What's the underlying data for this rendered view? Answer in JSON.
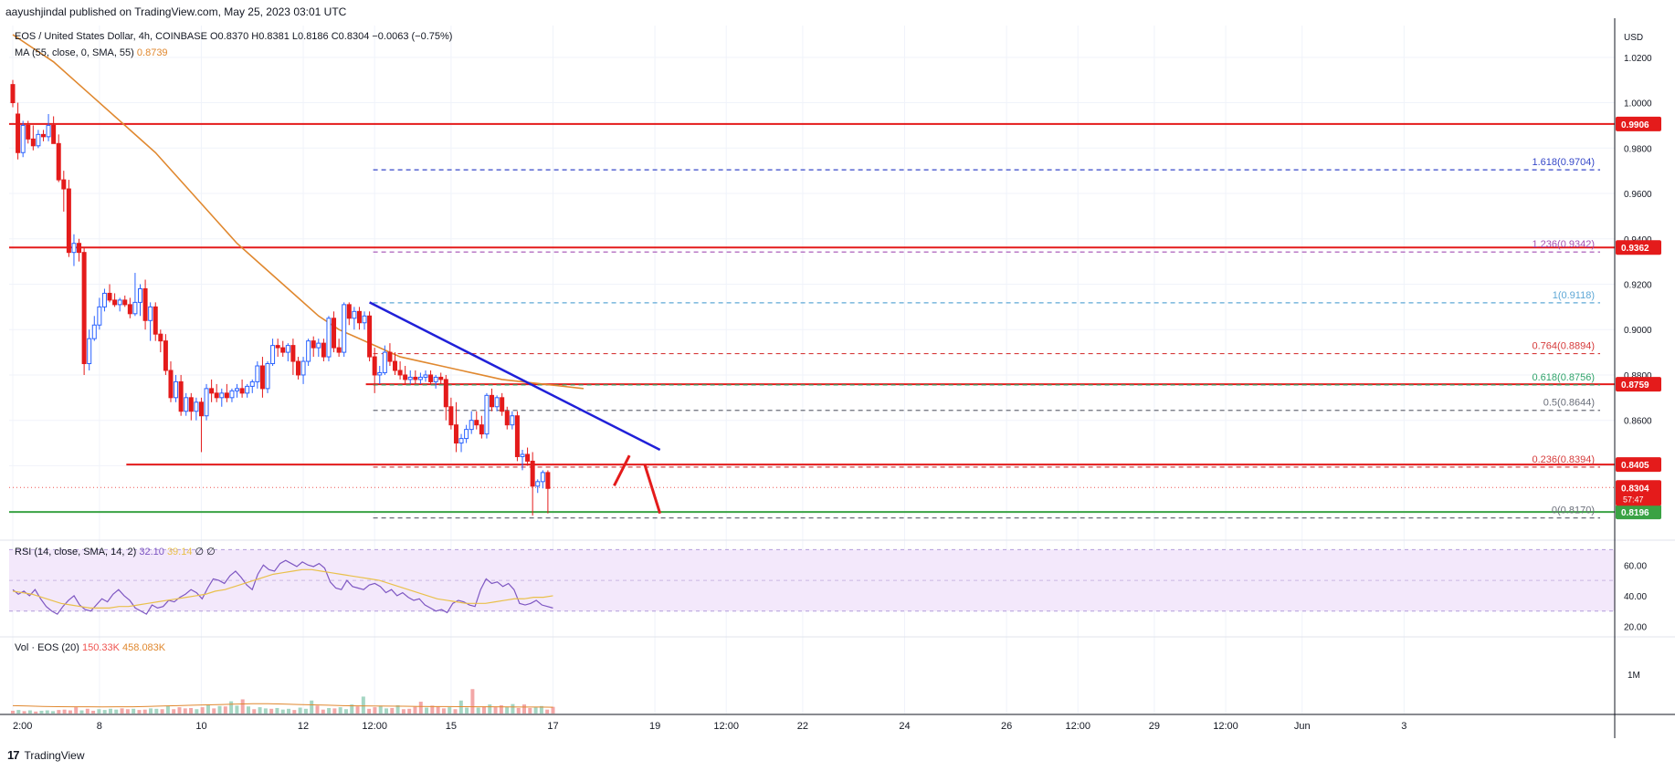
{
  "header": {
    "published": "aayushjindal published on TradingView.com, May 25, 2023 03:01 UTC"
  },
  "legend": {
    "symbol": "EOS / United States Dollar, 4h, COINBASE",
    "ohlc": "O0.8370 H0.8381 L0.8186 C0.8304 −0.0063 (−0.75%)",
    "ma_label": "MA (55, close, 0, SMA, 55)",
    "ma_value": "0.8739",
    "rsi_label": "RSI (14, close, SMA, 14, 2)",
    "rsi_value": "32.10",
    "rsi_ma_value": "39.14",
    "rsi_extra": "∅ ∅",
    "vol_label": "Vol · EOS (20)",
    "vol_value": "150.33K",
    "vol_ma_value": "458.083K"
  },
  "footer": {
    "brand": "TradingView",
    "logo": "17"
  },
  "chart_data": {
    "type": "candlestick",
    "currency_label": "USD",
    "ylim": [
      0.808,
      1.034
    ],
    "price_ticks": [
      "1.0200",
      "1.0000",
      "0.9800",
      "0.9600",
      "0.9400",
      "0.9200",
      "0.9000",
      "0.8800",
      "0.8600",
      "0.8400"
    ],
    "price_tick_values": [
      1.02,
      1.0,
      0.98,
      0.96,
      0.94,
      0.92,
      0.9,
      0.88,
      0.86,
      0.84
    ],
    "rsi_ticks": [
      "60.00",
      "40.00",
      "20.00"
    ],
    "rsi_tick_values": [
      60,
      40,
      20
    ],
    "rsi_band": [
      30,
      70
    ],
    "vol_ticks": [
      "1M"
    ],
    "x_ticks": [
      "2:00",
      "8",
      "10",
      "12",
      "12:00",
      "15",
      "17",
      "19",
      "12:00",
      "22",
      "24",
      "26",
      "12:00",
      "29",
      "12:00",
      "Jun",
      "3"
    ],
    "x_tick_bars": [
      0,
      17,
      37,
      57,
      71,
      86,
      106,
      126,
      140,
      155,
      175,
      195,
      209,
      224,
      238,
      253,
      273
    ],
    "total_bars": 293,
    "candle_start_bar": 0,
    "candles_ohlc": [
      [
        1.008,
        1.01,
        0.998,
        1.0
      ],
      [
        0.995,
        1.0,
        0.975,
        0.978
      ],
      [
        0.978,
        0.992,
        0.976,
        0.99
      ],
      [
        0.99,
        0.992,
        0.982,
        0.984
      ],
      [
        0.984,
        0.99,
        0.979,
        0.981
      ],
      [
        0.981,
        0.988,
        0.98,
        0.986
      ],
      [
        0.986,
        0.988,
        0.983,
        0.985
      ],
      [
        0.985,
        0.995,
        0.983,
        0.99
      ],
      [
        0.99,
        0.994,
        0.982,
        0.982
      ],
      [
        0.982,
        0.986,
        0.965,
        0.966
      ],
      [
        0.966,
        0.97,
        0.952,
        0.962
      ],
      [
        0.962,
        0.966,
        0.932,
        0.934
      ],
      [
        0.934,
        0.942,
        0.928,
        0.938
      ],
      [
        0.938,
        0.94,
        0.93,
        0.934
      ],
      [
        0.934,
        0.936,
        0.88,
        0.885
      ],
      [
        0.885,
        0.9,
        0.882,
        0.896
      ],
      [
        0.896,
        0.906,
        0.895,
        0.902
      ],
      [
        0.902,
        0.914,
        0.9,
        0.91
      ],
      [
        0.91,
        0.918,
        0.908,
        0.916
      ],
      [
        0.916,
        0.92,
        0.912,
        0.913
      ],
      [
        0.913,
        0.916,
        0.91,
        0.911
      ],
      [
        0.911,
        0.914,
        0.908,
        0.913
      ],
      [
        0.913,
        0.915,
        0.91,
        0.911
      ],
      [
        0.911,
        0.914,
        0.905,
        0.907
      ],
      [
        0.907,
        0.925,
        0.906,
        0.912
      ],
      [
        0.912,
        0.92,
        0.906,
        0.918
      ],
      [
        0.918,
        0.922,
        0.9,
        0.904
      ],
      [
        0.904,
        0.912,
        0.895,
        0.91
      ],
      [
        0.91,
        0.912,
        0.895,
        0.898
      ],
      [
        0.898,
        0.9,
        0.89,
        0.895
      ],
      [
        0.895,
        0.898,
        0.88,
        0.882
      ],
      [
        0.882,
        0.886,
        0.868,
        0.87
      ],
      [
        0.87,
        0.88,
        0.868,
        0.877
      ],
      [
        0.877,
        0.88,
        0.862,
        0.864
      ],
      [
        0.864,
        0.872,
        0.862,
        0.87
      ],
      [
        0.87,
        0.872,
        0.86,
        0.864
      ],
      [
        0.864,
        0.87,
        0.86,
        0.868
      ],
      [
        0.868,
        0.87,
        0.846,
        0.862
      ],
      [
        0.862,
        0.876,
        0.86,
        0.874
      ],
      [
        0.874,
        0.878,
        0.868,
        0.872
      ],
      [
        0.872,
        0.876,
        0.868,
        0.87
      ],
      [
        0.87,
        0.874,
        0.866,
        0.872
      ],
      [
        0.872,
        0.876,
        0.868,
        0.87
      ],
      [
        0.87,
        0.874,
        0.868,
        0.873
      ],
      [
        0.873,
        0.876,
        0.87,
        0.874
      ],
      [
        0.874,
        0.878,
        0.87,
        0.872
      ],
      [
        0.872,
        0.876,
        0.87,
        0.875
      ],
      [
        0.875,
        0.878,
        0.872,
        0.877
      ],
      [
        0.877,
        0.886,
        0.874,
        0.884
      ],
      [
        0.884,
        0.888,
        0.87,
        0.874
      ],
      [
        0.874,
        0.886,
        0.872,
        0.885
      ],
      [
        0.885,
        0.896,
        0.884,
        0.893
      ],
      [
        0.893,
        0.896,
        0.888,
        0.892
      ],
      [
        0.892,
        0.895,
        0.888,
        0.89
      ],
      [
        0.89,
        0.894,
        0.886,
        0.893
      ],
      [
        0.893,
        0.896,
        0.88,
        0.886
      ],
      [
        0.886,
        0.888,
        0.878,
        0.88
      ],
      [
        0.88,
        0.888,
        0.876,
        0.886
      ],
      [
        0.886,
        0.896,
        0.884,
        0.895
      ],
      [
        0.895,
        0.897,
        0.888,
        0.892
      ],
      [
        0.892,
        0.896,
        0.888,
        0.894
      ],
      [
        0.894,
        0.896,
        0.886,
        0.888
      ],
      [
        0.888,
        0.906,
        0.886,
        0.905
      ],
      [
        0.905,
        0.908,
        0.89,
        0.892
      ],
      [
        0.892,
        0.896,
        0.888,
        0.89
      ],
      [
        0.89,
        0.912,
        0.888,
        0.911
      ],
      [
        0.911,
        0.912,
        0.902,
        0.905
      ],
      [
        0.905,
        0.91,
        0.9,
        0.908
      ],
      [
        0.908,
        0.91,
        0.9,
        0.903
      ],
      [
        0.903,
        0.908,
        0.9,
        0.906
      ],
      [
        0.906,
        0.908,
        0.886,
        0.888
      ],
      [
        0.888,
        0.892,
        0.872,
        0.88
      ],
      [
        0.88,
        0.884,
        0.876,
        0.881
      ],
      [
        0.881,
        0.893,
        0.88,
        0.89
      ],
      [
        0.89,
        0.894,
        0.884,
        0.886
      ],
      [
        0.886,
        0.89,
        0.88,
        0.882
      ],
      [
        0.882,
        0.886,
        0.878,
        0.88
      ],
      [
        0.88,
        0.884,
        0.876,
        0.878
      ],
      [
        0.878,
        0.882,
        0.876,
        0.879
      ],
      [
        0.879,
        0.882,
        0.876,
        0.878
      ],
      [
        0.878,
        0.881,
        0.876,
        0.879
      ],
      [
        0.879,
        0.882,
        0.877,
        0.88
      ],
      [
        0.88,
        0.882,
        0.876,
        0.877
      ],
      [
        0.877,
        0.88,
        0.874,
        0.879
      ],
      [
        0.879,
        0.881,
        0.876,
        0.878
      ],
      [
        0.878,
        0.88,
        0.86,
        0.866
      ],
      [
        0.866,
        0.87,
        0.856,
        0.858
      ],
      [
        0.858,
        0.868,
        0.846,
        0.85
      ],
      [
        0.85,
        0.854,
        0.846,
        0.852
      ],
      [
        0.852,
        0.858,
        0.85,
        0.856
      ],
      [
        0.856,
        0.864,
        0.854,
        0.86
      ],
      [
        0.86,
        0.864,
        0.856,
        0.858
      ],
      [
        0.858,
        0.862,
        0.852,
        0.854
      ],
      [
        0.854,
        0.872,
        0.852,
        0.871
      ],
      [
        0.871,
        0.874,
        0.864,
        0.866
      ],
      [
        0.866,
        0.871,
        0.864,
        0.87
      ],
      [
        0.87,
        0.872,
        0.862,
        0.864
      ],
      [
        0.864,
        0.866,
        0.856,
        0.858
      ],
      [
        0.858,
        0.864,
        0.856,
        0.862
      ],
      [
        0.862,
        0.864,
        0.842,
        0.844
      ],
      [
        0.844,
        0.847,
        0.838,
        0.845
      ],
      [
        0.845,
        0.848,
        0.84,
        0.842
      ],
      [
        0.842,
        0.846,
        0.818,
        0.831
      ],
      [
        0.831,
        0.834,
        0.828,
        0.833
      ],
      [
        0.833,
        0.838,
        0.83,
        0.837
      ],
      [
        0.837,
        0.838,
        0.819,
        0.83
      ]
    ],
    "candle_bars": [
      0,
      1,
      2,
      3,
      4,
      5,
      6,
      7,
      8,
      9,
      10,
      11,
      12,
      13,
      14,
      15,
      16,
      17,
      18,
      19,
      20,
      21,
      22,
      23,
      24,
      25,
      26,
      27,
      28,
      29,
      30,
      31,
      32,
      33,
      34,
      35,
      36,
      37,
      38,
      39,
      40,
      41,
      42,
      43,
      44,
      45,
      46,
      47,
      48,
      49,
      50,
      51,
      52,
      53,
      54,
      55,
      56,
      57,
      58,
      59,
      60,
      61,
      62,
      63,
      64,
      65,
      66,
      67,
      68,
      69,
      70,
      71,
      72,
      73,
      74,
      75,
      76,
      77,
      78,
      79,
      80,
      81,
      82,
      83,
      84,
      85,
      86,
      87,
      88,
      89,
      90,
      91,
      92,
      93,
      94,
      95,
      96,
      97,
      98,
      99,
      100,
      101,
      102,
      103,
      104,
      105,
      106
    ],
    "bar_spacing_scale": 1.6,
    "ma55": [
      1.03,
      1.024,
      1.018,
      1.01,
      1.002,
      0.994,
      0.986,
      0.978,
      0.968,
      0.958,
      0.948,
      0.938,
      0.93,
      0.922,
      0.914,
      0.906,
      0.9,
      0.896,
      0.892,
      0.888,
      0.886,
      0.884,
      0.882,
      0.88,
      0.878,
      0.877,
      0.876,
      0.875,
      0.874
    ],
    "ma55_bars": [
      0,
      4,
      8,
      12,
      16,
      20,
      24,
      28,
      32,
      36,
      40,
      44,
      48,
      52,
      56,
      60,
      64,
      68,
      72,
      76,
      80,
      84,
      88,
      92,
      96,
      100,
      104,
      108,
      112
    ],
    "horizontal_levels": [
      {
        "price": 0.9906,
        "label": "0.9906",
        "color": "#e41b1b",
        "from_bar": 0
      },
      {
        "price": 0.9362,
        "label": "0.9362",
        "color": "#e41b1b",
        "from_bar": 0
      },
      {
        "price": 0.8759,
        "label": "0.8759",
        "color": "#e41b1b",
        "from_bar": 70
      },
      {
        "price": 0.8405,
        "label": "0.8405",
        "color": "#e41b1b",
        "from_bar": 23
      },
      {
        "price": 0.8196,
        "label": "0.8196",
        "color": "#3aa244",
        "from_bar": 0
      }
    ],
    "current_price": {
      "label": "0.8304",
      "countdown": "57:47",
      "price": 0.8304
    },
    "fib_levels": [
      {
        "ratio": "1.618",
        "price": 0.9704,
        "label": "1.618(0.9704)",
        "color": "#3547c8"
      },
      {
        "ratio": "1.236",
        "price": 0.9342,
        "label": "1.236(0.9342)",
        "color": "#a44fb4"
      },
      {
        "ratio": "1",
        "price": 0.9118,
        "label": "1(0.9118)",
        "color": "#5fa8d6"
      },
      {
        "ratio": "0.764",
        "price": 0.8894,
        "label": "0.764(0.8894)",
        "color": "#d63b3b"
      },
      {
        "ratio": "0.618",
        "price": 0.8756,
        "label": "0.618(0.8756)",
        "color": "#31a46b"
      },
      {
        "ratio": "0.5",
        "price": 0.8644,
        "label": "0.5(0.8644)",
        "color": "#6b6f7a"
      },
      {
        "ratio": "0.236",
        "price": 0.8394,
        "label": "0.236(0.8394)",
        "color": "#d63b3b"
      },
      {
        "ratio": "0",
        "price": 0.817,
        "label": "0(0.8170)",
        "color": "#6b6f7a"
      }
    ],
    "fib_from_bar": 70,
    "trendline": {
      "from_bar": 70,
      "from_price": 0.912,
      "to_bar": 127,
      "to_price": 0.847,
      "color": "#2020d8"
    },
    "forecast_arrows": [
      {
        "from_bar": 118,
        "from_price": 0.8312,
        "to_bar": 121,
        "to_price": 0.8445,
        "color": "#e41b1b"
      },
      {
        "from_bar": 124,
        "from_price": 0.8405,
        "to_bar": 127,
        "to_price": 0.819,
        "color": "#e41b1b"
      }
    ],
    "rsi": {
      "ylim": [
        15,
        75
      ],
      "values": [
        44,
        41,
        43,
        40,
        44,
        38,
        33,
        30,
        28,
        33,
        37,
        40,
        34,
        31,
        30,
        34,
        38,
        36,
        41,
        44,
        40,
        37,
        32,
        30,
        28,
        34,
        32,
        33,
        37,
        36,
        39,
        41,
        44,
        42,
        38,
        45,
        51,
        50,
        48,
        53,
        56,
        52,
        47,
        44,
        54,
        60,
        57,
        56,
        61,
        63,
        61,
        59,
        62,
        60,
        59,
        61,
        58,
        49,
        45,
        44,
        50,
        46,
        45,
        44,
        47,
        48,
        46,
        42,
        44,
        40,
        42,
        39,
        37,
        38,
        34,
        32,
        30,
        31,
        29,
        35,
        37,
        36,
        34,
        33,
        44,
        51,
        48,
        49,
        46,
        48,
        44,
        35,
        34,
        35,
        37,
        34,
        33,
        32
      ],
      "ma_values": [
        43,
        42,
        41,
        39,
        37,
        35,
        34,
        33,
        32,
        32,
        32,
        33,
        33,
        34,
        35,
        36,
        37,
        38,
        39,
        40,
        41,
        43,
        44,
        46,
        48,
        50,
        52,
        54,
        55,
        56,
        57,
        57,
        56,
        55,
        54,
        53,
        52,
        51,
        50,
        48,
        46,
        44,
        42,
        40,
        38,
        37,
        36,
        35,
        35,
        35,
        36,
        37,
        38,
        38,
        39,
        39,
        40
      ]
    },
    "volume": {
      "max": 1900,
      "values": [
        70,
        90,
        60,
        80,
        50,
        70,
        80,
        60,
        90,
        100,
        80,
        160,
        80,
        120,
        70,
        110,
        90,
        120,
        100,
        130,
        110,
        120,
        90,
        100,
        130,
        120,
        110,
        200,
        110,
        160,
        130,
        140,
        110,
        160,
        220,
        130,
        190,
        180,
        310,
        200,
        360,
        180,
        110,
        160,
        130,
        120,
        140,
        100,
        120,
        90,
        150,
        120,
        330,
        200,
        100,
        140,
        130,
        160,
        110,
        230,
        180,
        430,
        120,
        160,
        200,
        130,
        140,
        210,
        110,
        120,
        170,
        300,
        150,
        200,
        180,
        130,
        160,
        110,
        330,
        150,
        620,
        150,
        180,
        230,
        160,
        210,
        160,
        240,
        140,
        230,
        140,
        160,
        190,
        100,
        170
      ],
      "up": [
        false,
        true,
        false,
        true,
        false,
        true,
        true,
        true,
        false,
        false,
        false,
        false,
        true,
        false,
        false,
        true,
        true,
        true,
        true,
        false,
        false,
        true,
        false,
        false,
        true,
        true,
        false,
        true,
        false,
        false,
        false,
        false,
        true,
        false,
        true,
        false,
        true,
        false,
        true,
        true,
        false,
        true,
        false,
        true,
        true,
        false,
        true,
        true,
        true,
        false,
        true,
        true,
        true,
        false,
        false,
        true,
        false,
        true,
        true,
        true,
        false,
        true,
        false,
        false,
        true,
        true,
        false,
        true,
        false,
        false,
        false,
        false,
        true,
        false,
        false,
        false,
        true,
        false,
        true,
        true,
        false,
        true,
        false,
        true,
        false,
        false,
        true,
        true,
        false,
        false,
        false,
        true,
        true,
        false,
        false
      ],
      "ma_values": [
        200,
        190,
        180,
        175,
        172,
        170,
        168,
        170,
        172,
        180,
        190,
        200,
        210,
        220,
        230,
        240,
        250,
        248,
        240,
        230,
        220,
        210,
        200,
        195,
        190,
        188,
        185,
        180,
        178,
        176,
        174,
        172,
        170,
        168,
        166,
        164,
        160
      ]
    }
  }
}
